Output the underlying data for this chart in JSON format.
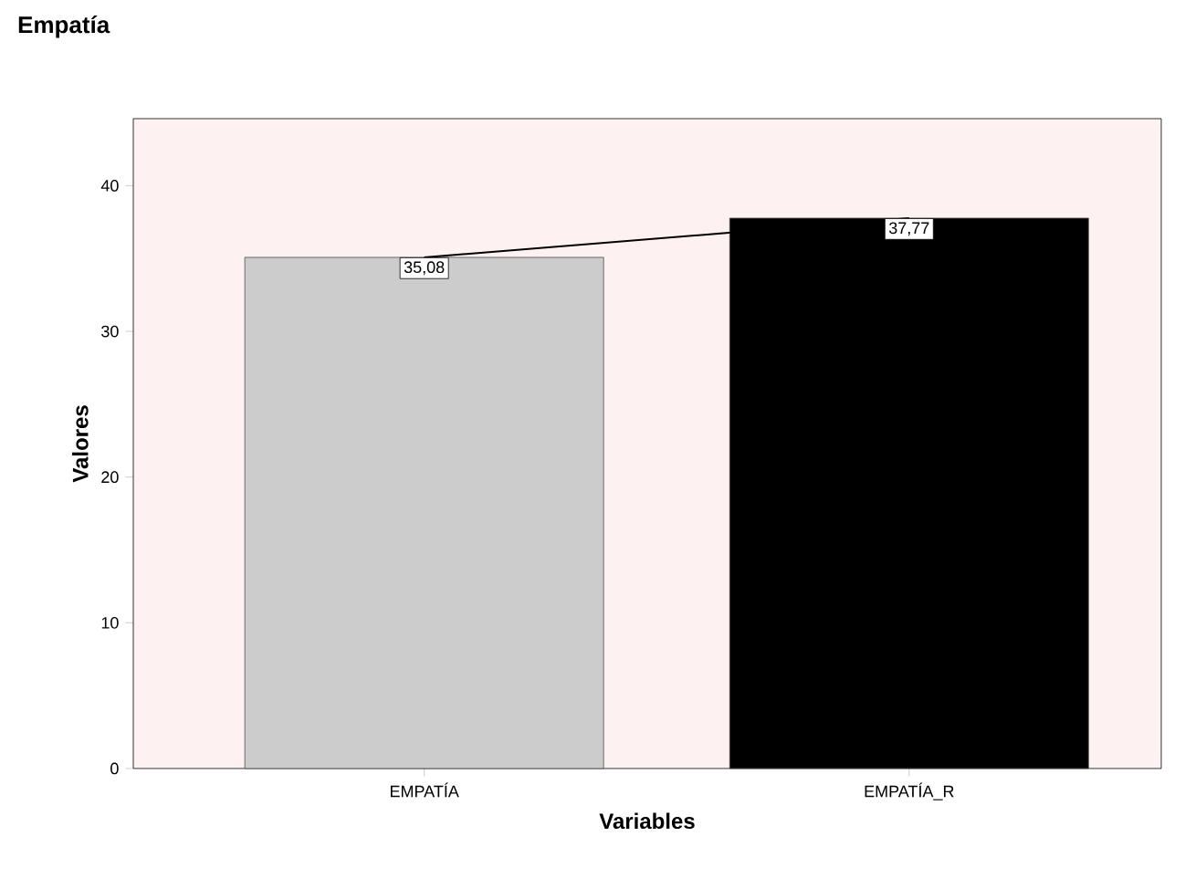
{
  "chart_data": {
    "type": "bar",
    "title": "Empatía",
    "xlabel": "Variables",
    "ylabel": "Valores",
    "categories": [
      "EMPATÍA",
      "EMPATÍA_R"
    ],
    "series": [
      {
        "colors": [
          "#cccccc",
          "#000000"
        ],
        "values": [
          35.08,
          37.77
        ],
        "value_labels": [
          "35,08",
          "37,77"
        ]
      },
      {
        "type": "line",
        "color": "#000000",
        "values": [
          35.08,
          37.77
        ]
      }
    ],
    "ylim": [
      0,
      44.6
    ],
    "yticks": [
      0,
      10,
      20,
      30,
      40
    ],
    "grid": false
  }
}
